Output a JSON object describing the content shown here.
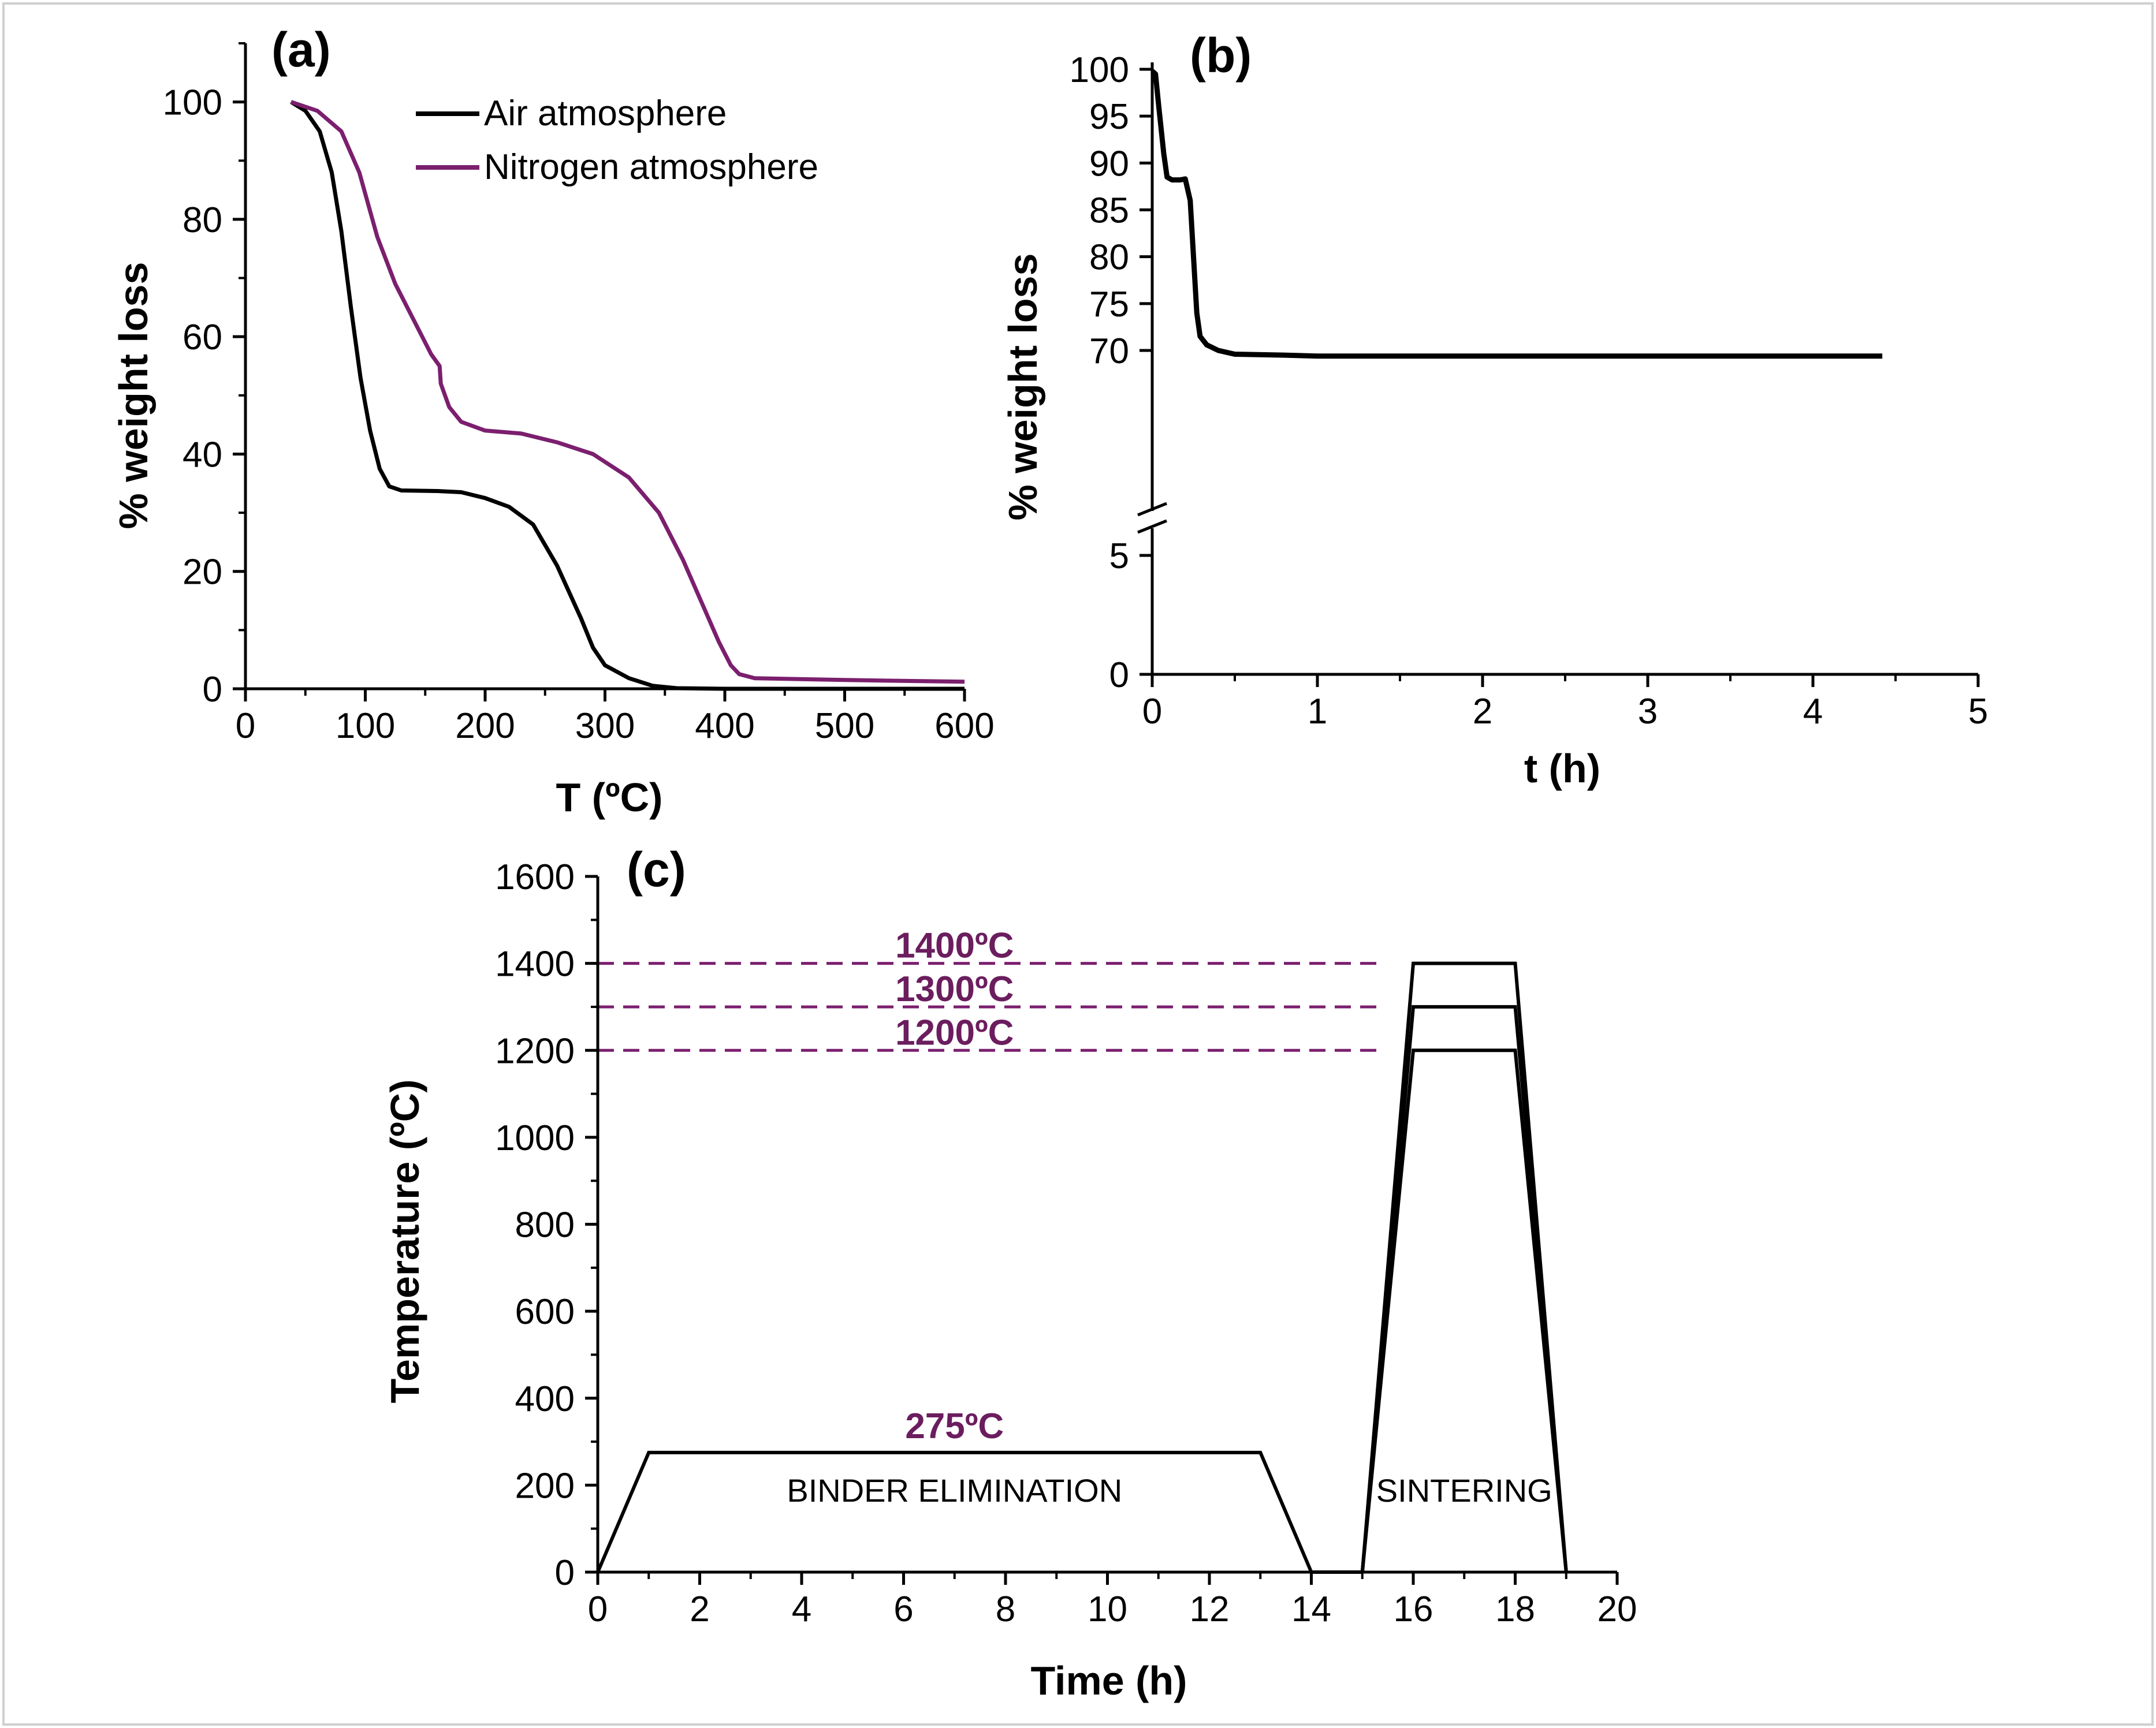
{
  "chart_data": [
    {
      "id": "a",
      "type": "line",
      "panel_label": "(a)",
      "xlabel": "T (ºC)",
      "ylabel": "% weight loss",
      "xlim": [
        0,
        600
      ],
      "ylim": [
        0,
        110
      ],
      "xticks": [
        0,
        100,
        200,
        300,
        400,
        500,
        600
      ],
      "yticks": [
        0,
        20,
        40,
        60,
        80,
        100
      ],
      "legend_position": "top-right",
      "series": [
        {
          "name": "Air atmosphere",
          "color": "#000000",
          "points": [
            [
              38,
              100
            ],
            [
              50,
              98.5
            ],
            [
              62,
              95
            ],
            [
              72,
              88
            ],
            [
              80,
              78
            ],
            [
              88,
              65
            ],
            [
              96,
              53
            ],
            [
              104,
              44
            ],
            [
              112,
              37.5
            ],
            [
              120,
              34.5
            ],
            [
              130,
              33.8
            ],
            [
              160,
              33.7
            ],
            [
              180,
              33.5
            ],
            [
              200,
              32.5
            ],
            [
              220,
              31
            ],
            [
              240,
              28
            ],
            [
              260,
              21
            ],
            [
              280,
              12
            ],
            [
              290,
              7
            ],
            [
              300,
              4
            ],
            [
              320,
              1.8
            ],
            [
              340,
              0.5
            ],
            [
              360,
              0.1
            ],
            [
              400,
              0
            ],
            [
              600,
              0
            ]
          ]
        },
        {
          "name": "Nitrogen atmosphere",
          "color": "#7b1f6e",
          "points": [
            [
              38,
              100
            ],
            [
              60,
              98.5
            ],
            [
              80,
              95
            ],
            [
              95,
              88
            ],
            [
              110,
              77
            ],
            [
              125,
              69
            ],
            [
              140,
              63
            ],
            [
              155,
              57
            ],
            [
              162,
              55
            ],
            [
              163,
              52
            ],
            [
              170,
              48
            ],
            [
              180,
              45.5
            ],
            [
              200,
              44
            ],
            [
              230,
              43.5
            ],
            [
              260,
              42
            ],
            [
              290,
              40
            ],
            [
              320,
              36
            ],
            [
              345,
              30
            ],
            [
              365,
              22
            ],
            [
              380,
              15
            ],
            [
              395,
              8
            ],
            [
              405,
              4
            ],
            [
              412,
              2.5
            ],
            [
              425,
              1.8
            ],
            [
              500,
              1.5
            ],
            [
              600,
              1.2
            ]
          ]
        }
      ]
    },
    {
      "id": "b",
      "type": "line",
      "panel_label": "(b)",
      "xlabel": "t (h)",
      "ylabel": "% weight loss",
      "xlim": [
        0,
        5
      ],
      "axis_break": "between 5 and 68",
      "yticks_lower": [
        0,
        5
      ],
      "yticks_upper": [
        70,
        75,
        80,
        85,
        90,
        95,
        100
      ],
      "xticks": [
        0,
        1,
        2,
        3,
        4,
        5
      ],
      "series": [
        {
          "color": "#000000",
          "points": [
            [
              0,
              99.8
            ],
            [
              0.02,
              99.5
            ],
            [
              0.04,
              96
            ],
            [
              0.07,
              91
            ],
            [
              0.09,
              88.5
            ],
            [
              0.12,
              88.2
            ],
            [
              0.17,
              88.2
            ],
            [
              0.2,
              88.3
            ],
            [
              0.23,
              86
            ],
            [
              0.25,
              80
            ],
            [
              0.27,
              74
            ],
            [
              0.29,
              71.5
            ],
            [
              0.33,
              70.6
            ],
            [
              0.4,
              70
            ],
            [
              0.5,
              69.6
            ],
            [
              0.8,
              69.5
            ],
            [
              1.0,
              69.4
            ],
            [
              2,
              69.4
            ],
            [
              3,
              69.4
            ],
            [
              4,
              69.4
            ],
            [
              4.42,
              69.4
            ]
          ]
        }
      ]
    },
    {
      "id": "c",
      "type": "line",
      "panel_label": "(c)",
      "xlabel": "Time (h)",
      "ylabel": "Temperature (ºC)",
      "xlim": [
        0,
        20
      ],
      "ylim": [
        0,
        1600
      ],
      "xticks": [
        0,
        2,
        4,
        6,
        8,
        10,
        12,
        14,
        16,
        18,
        20
      ],
      "yticks": [
        0,
        200,
        400,
        600,
        800,
        1000,
        1200,
        1400,
        1600
      ],
      "series": [
        {
          "points": [
            [
              0,
              0
            ],
            [
              1,
              275
            ],
            [
              13,
              275
            ],
            [
              14,
              0
            ],
            [
              15,
              0
            ]
          ]
        },
        {
          "points": [
            [
              15,
              0
            ],
            [
              16,
              1200
            ],
            [
              18,
              1200
            ],
            [
              19,
              0
            ]
          ]
        },
        {
          "points": [
            [
              15,
              0
            ],
            [
              16,
              1300
            ],
            [
              18,
              1300
            ],
            [
              19,
              0
            ]
          ]
        },
        {
          "points": [
            [
              15,
              0
            ],
            [
              16,
              1400
            ],
            [
              18,
              1400
            ],
            [
              19,
              0
            ]
          ]
        }
      ],
      "reference_lines": [
        {
          "y": 1400,
          "label": "1400ºC",
          "color": "#7b1f6e"
        },
        {
          "y": 1300,
          "label": "1300ºC",
          "color": "#7b1f6e"
        },
        {
          "y": 1200,
          "label": "1200ºC",
          "color": "#7b1f6e"
        }
      ],
      "annotations": [
        {
          "text": "275ºC",
          "x": 7,
          "y": 275,
          "color": "#7b1f6e"
        },
        {
          "text": "BINDER ELIMINATION",
          "x": 7,
          "y": 175
        },
        {
          "text": "SINTERING",
          "x": 17,
          "y": 175
        }
      ]
    }
  ]
}
